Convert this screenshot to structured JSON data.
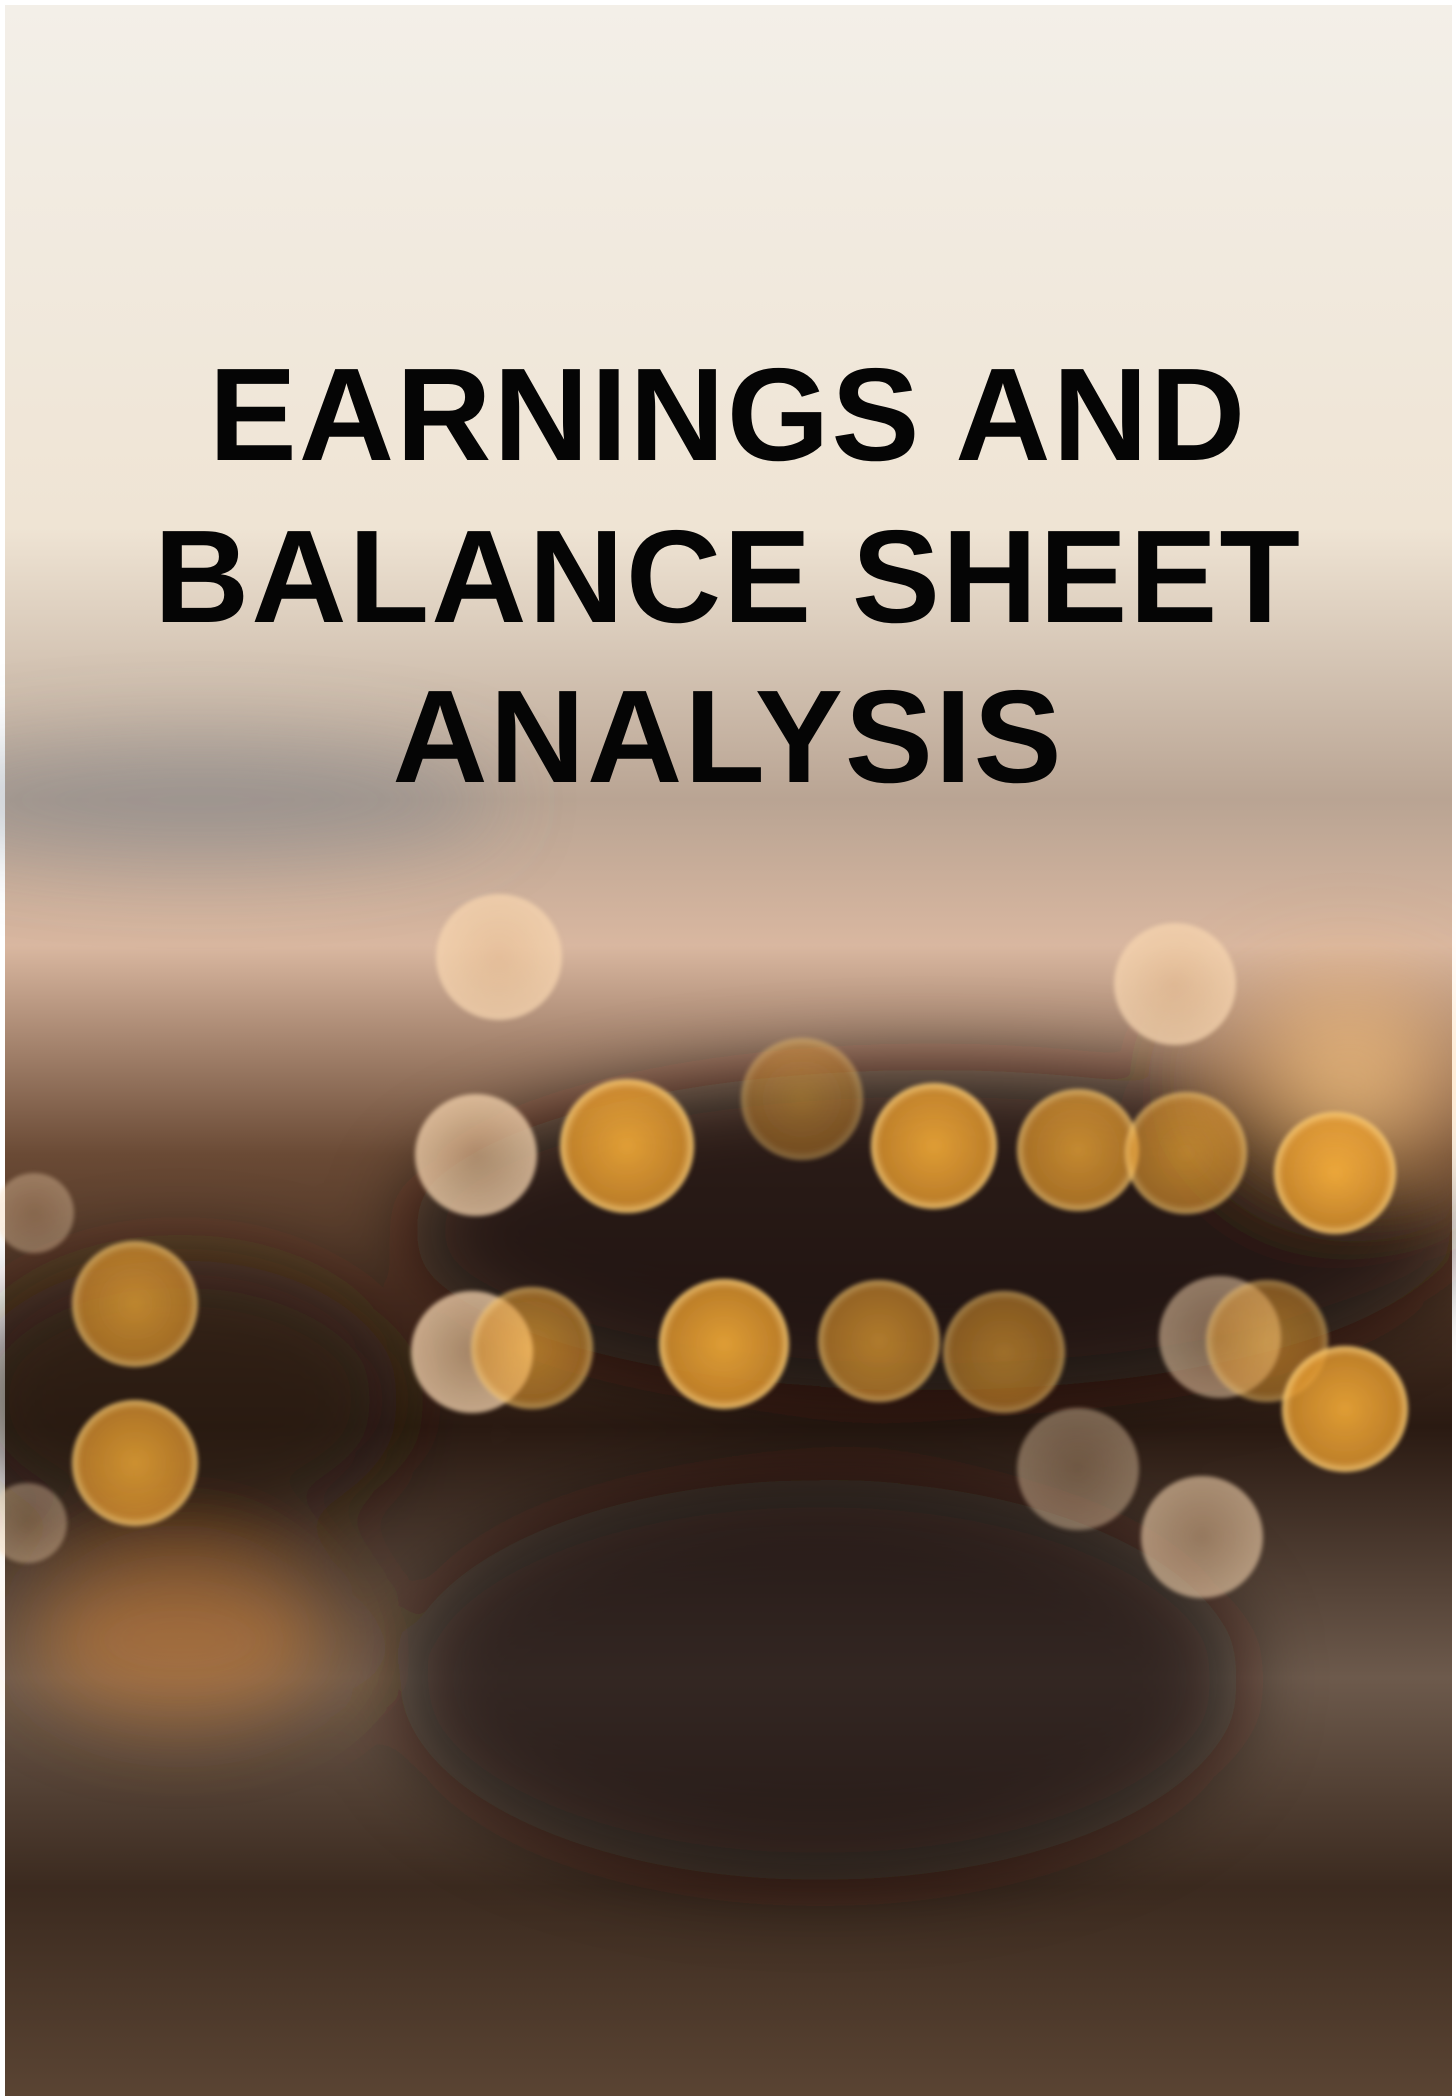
{
  "cover": {
    "title_lines": [
      "EARNINGS AND",
      "BALANCE SHEET",
      "ANALYSIS"
    ]
  }
}
